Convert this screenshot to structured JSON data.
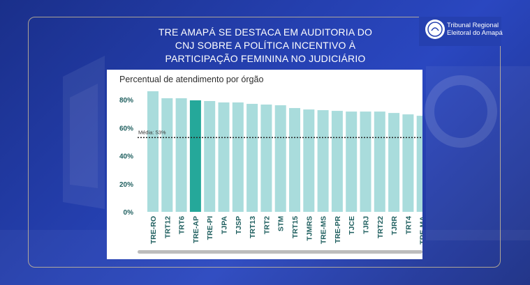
{
  "header": {
    "title_lines": [
      "TRE AMAPÁ SE DESTACA EM AUDITORIA DO",
      "CNJ SOBRE A POLÍTICA INCENTIVO À",
      "PARTICIPAÇÃO FEMININA NO JUDICIÁRIO"
    ]
  },
  "logo": {
    "line1": "Tribunal Regional",
    "line2": "Eleitoral do Amapá",
    "icon": "seal-icon"
  },
  "colors": {
    "background": "#2540b0",
    "bar": "#a9dcdc",
    "highlight_bar": "#25a89a",
    "axis_text": "#1f5f5f",
    "mean_line": "#222222"
  },
  "chart_data": {
    "type": "bar",
    "title": "Percentual de atendimento por órgão",
    "categories": [
      "TRE-RO",
      "TRT12",
      "TRT6",
      "TRE-AP",
      "TRE-PI",
      "TJPA",
      "TJSP",
      "TRT13",
      "TRT2",
      "STM",
      "TRT15",
      "TJMRS",
      "TRE-MS",
      "TRE-PR",
      "TJCE",
      "TJRJ",
      "TRT22",
      "TJRR",
      "TRT4",
      "TRE-MA"
    ],
    "values": [
      86,
      81,
      81,
      79.5,
      79,
      78,
      78,
      77,
      76.5,
      76,
      74,
      73,
      72.5,
      72,
      71.5,
      71.5,
      71.5,
      70.5,
      69.5,
      68.5
    ],
    "highlight": "TRE-AP",
    "yticks": [
      "0%",
      "20%",
      "40%",
      "60%",
      "80%"
    ],
    "ylim": [
      0,
      90
    ],
    "mean": {
      "label": "Média: 53%",
      "value": 53
    },
    "grid": false,
    "legend": "none"
  }
}
